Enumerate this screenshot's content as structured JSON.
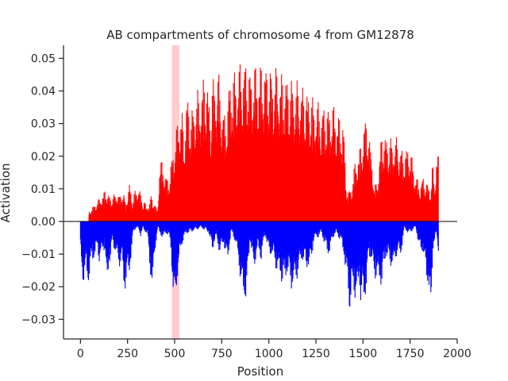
{
  "chart_data": {
    "type": "bar",
    "title": "AB compartments of chromosome 4 from GM12878",
    "xlabel": "Position",
    "ylabel": "Activation",
    "xlim": [
      -90,
      2000
    ],
    "ylim": [
      -0.036,
      0.054
    ],
    "xticks": [
      0,
      250,
      500,
      750,
      1000,
      1250,
      1500,
      1750,
      2000
    ],
    "yticks": [
      -0.03,
      -0.02,
      -0.01,
      0.0,
      0.01,
      0.02,
      0.03,
      0.04,
      0.05
    ],
    "ytick_labels": [
      "−0.03",
      "−0.02",
      "−0.01",
      "0.00",
      "0.01",
      "0.02",
      "0.03",
      "0.04",
      "0.05"
    ],
    "positive_color": "#ff0000",
    "negative_color": "#0000ff",
    "highlight_color": "#ffcccc",
    "highlight_region": [
      485,
      525
    ],
    "envelope_note": "per-position activation values along chromosome 4 bins",
    "series": [
      {
        "name": "A compartment",
        "color": "#ff0000",
        "points": [
          [
            45,
            0.003
          ],
          [
            50,
            0.0035
          ],
          [
            125,
            0.009
          ],
          [
            130,
            0.01
          ],
          [
            140,
            0.0095
          ],
          [
            160,
            0.0075
          ],
          [
            175,
            0.0085
          ],
          [
            190,
            0.0085
          ],
          [
            200,
            0.01
          ],
          [
            205,
            0.007
          ],
          [
            215,
            0.009
          ],
          [
            230,
            0.0095
          ],
          [
            240,
            0.005
          ],
          [
            255,
            0.011
          ],
          [
            260,
            0.012
          ],
          [
            275,
            0.0065
          ],
          [
            285,
            0.0095
          ],
          [
            300,
            0.0095
          ],
          [
            310,
            0.012
          ],
          [
            320,
            0.008
          ],
          [
            330,
            0.006
          ],
          [
            340,
            0.0075
          ],
          [
            350,
            0.004
          ],
          [
            365,
            0.0065
          ],
          [
            370,
            0.0055
          ],
          [
            375,
            0.009
          ],
          [
            385,
            0.006
          ],
          [
            390,
            0.007
          ],
          [
            400,
            0.0045
          ],
          [
            410,
            0.004
          ],
          [
            420,
            0.018
          ],
          [
            430,
            0.019
          ],
          [
            440,
            0.018
          ],
          [
            450,
            0.0155
          ],
          [
            460,
            0.0135
          ],
          [
            470,
            0.0135
          ],
          [
            480,
            0.018
          ],
          [
            530,
            0.036
          ],
          [
            540,
            0.034
          ],
          [
            550,
            0.025
          ],
          [
            560,
            0.038
          ],
          [
            570,
            0.039
          ],
          [
            580,
            0.035
          ],
          [
            600,
            0.0355
          ],
          [
            610,
            0.04
          ],
          [
            620,
            0.041
          ],
          [
            630,
            0.039
          ],
          [
            640,
            0.043
          ],
          [
            650,
            0.044
          ],
          [
            660,
            0.045
          ],
          [
            670,
            0.046
          ],
          [
            690,
            0.033
          ],
          [
            700,
            0.0445
          ],
          [
            720,
            0.044
          ],
          [
            730,
            0.0475
          ],
          [
            750,
            0.038
          ],
          [
            770,
            0.032
          ],
          [
            790,
            0.044
          ],
          [
            800,
            0.0455
          ],
          [
            820,
            0.0465
          ],
          [
            840,
            0.0485
          ],
          [
            860,
            0.0495
          ],
          [
            880,
            0.05
          ],
          [
            900,
            0.047
          ],
          [
            920,
            0.048
          ],
          [
            940,
            0.049
          ],
          [
            960,
            0.0485
          ],
          [
            980,
            0.049
          ],
          [
            1000,
            0.048
          ],
          [
            1020,
            0.047
          ],
          [
            1040,
            0.0475
          ],
          [
            1060,
            0.046
          ],
          [
            1080,
            0.046
          ],
          [
            1100,
            0.045
          ],
          [
            1120,
            0.044
          ],
          [
            1140,
            0.0435
          ],
          [
            1160,
            0.043
          ],
          [
            1180,
            0.042
          ],
          [
            1200,
            0.041
          ],
          [
            1220,
            0.0395
          ],
          [
            1240,
            0.038
          ],
          [
            1260,
            0.037
          ],
          [
            1280,
            0.036
          ],
          [
            1300,
            0.0355
          ],
          [
            1320,
            0.0355
          ],
          [
            1340,
            0.036
          ],
          [
            1360,
            0.035
          ],
          [
            1380,
            0.031
          ],
          [
            1395,
            0.033
          ],
          [
            1410,
            0.013
          ],
          [
            1420,
            0.009
          ],
          [
            1440,
            0.0115
          ],
          [
            1460,
            0.0195
          ],
          [
            1480,
            0.022
          ],
          [
            1500,
            0.0275
          ],
          [
            1510,
            0.032
          ],
          [
            1520,
            0.0335
          ],
          [
            1535,
            0.025
          ],
          [
            1550,
            0.02
          ],
          [
            1560,
            0.01
          ],
          [
            1580,
            0.015
          ],
          [
            1600,
            0.028
          ],
          [
            1620,
            0.0265
          ],
          [
            1640,
            0.026
          ],
          [
            1660,
            0.0255
          ],
          [
            1680,
            0.026
          ],
          [
            1700,
            0.023
          ],
          [
            1720,
            0.0215
          ],
          [
            1740,
            0.024
          ],
          [
            1760,
            0.02
          ],
          [
            1780,
            0.0145
          ],
          [
            1800,
            0.0115
          ],
          [
            1820,
            0.014
          ],
          [
            1840,
            0.012
          ],
          [
            1860,
            0.01
          ],
          [
            1870,
            0.019
          ],
          [
            1880,
            0.0115
          ],
          [
            1890,
            0.0215
          ],
          [
            1900,
            0.02
          ]
        ]
      },
      {
        "name": "B compartment",
        "color": "#0000ff",
        "points": [
          [
            0,
            -0.01
          ],
          [
            10,
            -0.018
          ],
          [
            20,
            -0.019
          ],
          [
            30,
            -0.015
          ],
          [
            40,
            -0.02
          ],
          [
            50,
            -0.017
          ],
          [
            60,
            -0.012
          ],
          [
            70,
            -0.012
          ],
          [
            80,
            -0.011
          ],
          [
            90,
            -0.008
          ],
          [
            100,
            -0.013
          ],
          [
            110,
            -0.011
          ],
          [
            120,
            -0.009
          ],
          [
            130,
            -0.009
          ],
          [
            140,
            -0.022
          ],
          [
            150,
            -0.014
          ],
          [
            160,
            -0.012
          ],
          [
            170,
            -0.006
          ],
          [
            180,
            -0.009
          ],
          [
            190,
            -0.011
          ],
          [
            200,
            -0.013
          ],
          [
            210,
            -0.014
          ],
          [
            220,
            -0.012
          ],
          [
            230,
            -0.021
          ],
          [
            240,
            -0.021
          ],
          [
            250,
            -0.017
          ],
          [
            260,
            -0.016
          ],
          [
            270,
            -0.011
          ],
          [
            280,
            -0.0035
          ],
          [
            290,
            -0.0025
          ],
          [
            300,
            -0.002
          ],
          [
            310,
            -0.003
          ],
          [
            320,
            -0.0045
          ],
          [
            330,
            -0.0025
          ],
          [
            345,
            -0.0035
          ],
          [
            355,
            -0.0035
          ],
          [
            365,
            -0.013
          ],
          [
            375,
            -0.019
          ],
          [
            385,
            -0.02
          ],
          [
            395,
            -0.01
          ],
          [
            410,
            -0.002
          ],
          [
            420,
            -0.004
          ],
          [
            430,
            -0.0045
          ],
          [
            440,
            -0.0055
          ],
          [
            450,
            -0.004
          ],
          [
            460,
            -0.004
          ],
          [
            470,
            -0.005
          ],
          [
            480,
            -0.0085
          ],
          [
            490,
            -0.021
          ],
          [
            495,
            -0.027
          ],
          [
            500,
            -0.028
          ],
          [
            510,
            -0.02
          ],
          [
            520,
            -0.015
          ],
          [
            530,
            -0.01
          ],
          [
            540,
            -0.007
          ],
          [
            560,
            -0.004
          ],
          [
            600,
            -0.003
          ],
          [
            640,
            -0.002
          ],
          [
            680,
            -0.0035
          ],
          [
            700,
            -0.009
          ],
          [
            720,
            -0.005
          ],
          [
            740,
            -0.01
          ],
          [
            760,
            -0.007
          ],
          [
            780,
            -0.013
          ],
          [
            800,
            -0.0035
          ],
          [
            820,
            -0.006
          ],
          [
            840,
            -0.013
          ],
          [
            860,
            -0.024
          ],
          [
            880,
            -0.0245
          ],
          [
            900,
            -0.006
          ],
          [
            920,
            -0.015
          ],
          [
            940,
            -0.009
          ],
          [
            960,
            -0.012
          ],
          [
            980,
            -0.004
          ],
          [
            1000,
            -0.01
          ],
          [
            1020,
            -0.011
          ],
          [
            1040,
            -0.015
          ],
          [
            1060,
            -0.018
          ],
          [
            1080,
            -0.02
          ],
          [
            1100,
            -0.016
          ],
          [
            1120,
            -0.021
          ],
          [
            1140,
            -0.02
          ],
          [
            1160,
            -0.015
          ],
          [
            1180,
            -0.012
          ],
          [
            1200,
            -0.015
          ],
          [
            1220,
            -0.014
          ],
          [
            1240,
            -0.006
          ],
          [
            1260,
            -0.005
          ],
          [
            1280,
            -0.004
          ],
          [
            1300,
            -0.008
          ],
          [
            1320,
            -0.011
          ],
          [
            1340,
            -0.005
          ],
          [
            1360,
            -0.004
          ],
          [
            1380,
            -0.006
          ],
          [
            1400,
            -0.011
          ],
          [
            1410,
            -0.018
          ],
          [
            1420,
            -0.019
          ],
          [
            1430,
            -0.0305
          ],
          [
            1440,
            -0.024
          ],
          [
            1450,
            -0.02
          ],
          [
            1460,
            -0.026
          ],
          [
            1470,
            -0.025
          ],
          [
            1480,
            -0.017
          ],
          [
            1490,
            -0.029
          ],
          [
            1500,
            -0.023
          ],
          [
            1510,
            -0.025
          ],
          [
            1520,
            -0.021
          ],
          [
            1530,
            -0.01
          ],
          [
            1540,
            -0.012
          ],
          [
            1560,
            -0.017
          ],
          [
            1580,
            -0.019
          ],
          [
            1600,
            -0.02
          ],
          [
            1620,
            -0.011
          ],
          [
            1640,
            -0.013
          ],
          [
            1660,
            -0.015
          ],
          [
            1680,
            -0.01
          ],
          [
            1700,
            -0.011
          ],
          [
            1720,
            -0.002
          ],
          [
            1740,
            -0.004
          ],
          [
            1760,
            -0.003
          ],
          [
            1780,
            -0.002
          ],
          [
            1800,
            -0.009
          ],
          [
            1820,
            -0.01
          ],
          [
            1840,
            -0.019
          ],
          [
            1845,
            -0.0195
          ],
          [
            1855,
            -0.0265
          ],
          [
            1860,
            -0.032
          ],
          [
            1870,
            -0.009
          ],
          [
            1880,
            -0.007
          ],
          [
            1890,
            -0.004
          ],
          [
            1900,
            -0.009
          ]
        ]
      }
    ]
  }
}
